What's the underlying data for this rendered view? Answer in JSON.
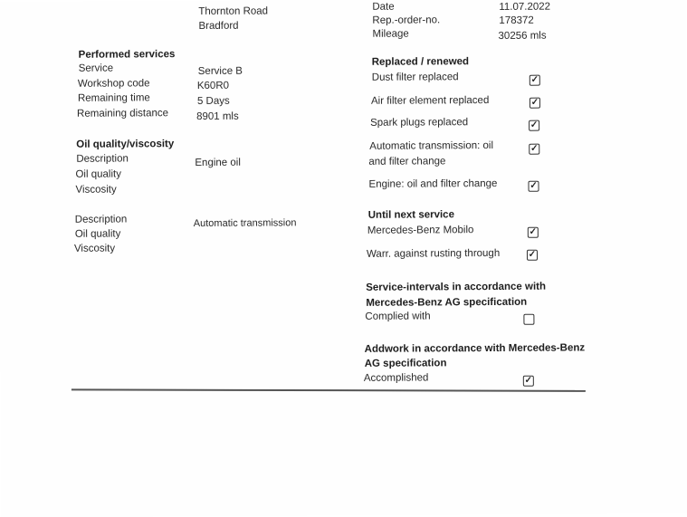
{
  "address": {
    "street": "Thornton Road",
    "city": "Bradford"
  },
  "order": {
    "date_label": "Date",
    "date": "11.07.2022",
    "rep_label": "Rep.-order-no.",
    "rep": "178372",
    "mileage_label": "Mileage",
    "mileage": "30256 mls"
  },
  "performed": {
    "title": "Performed services",
    "rows": [
      {
        "label": "Service",
        "value": "Service B"
      },
      {
        "label": "Workshop code",
        "value": "K60R0"
      },
      {
        "label": "Remaining time",
        "value": "5 Days"
      },
      {
        "label": "Remaining distance",
        "value": "8901 mls"
      }
    ]
  },
  "oil": {
    "title": "Oil quality/viscosity",
    "block1": {
      "description_label": "Description",
      "description": "Engine oil",
      "quality_label": "Oil quality",
      "viscosity_label": "Viscosity"
    },
    "block2": {
      "description_label": "Description",
      "description": "Automatic transmission",
      "quality_label": "Oil quality",
      "viscosity_label": "Viscosity"
    }
  },
  "replaced": {
    "title": "Replaced / renewed",
    "items": [
      {
        "label": "Dust filter replaced",
        "checked": true
      },
      {
        "label": "Air filter element replaced",
        "checked": true
      },
      {
        "label": "Spark plugs replaced",
        "checked": true
      },
      {
        "label": "Automatic transmission: oil",
        "label2": "and filter change",
        "checked": true
      },
      {
        "label": "Engine: oil and filter change",
        "checked": true
      }
    ]
  },
  "next": {
    "title": "Until next service",
    "items": [
      {
        "label": "Mercedes-Benz Mobilo",
        "checked": true
      },
      {
        "label": "Warr. against rusting through",
        "checked": true
      }
    ]
  },
  "intervals": {
    "title1": "Service-intervals in accordance with",
    "title2": "Mercedes-Benz AG specification",
    "label": "Complied with",
    "checked": false
  },
  "addwork": {
    "title1": "Addwork in accordance with Mercedes-Benz",
    "title2": "AG specification",
    "label": "Accomplished",
    "checked": true
  }
}
